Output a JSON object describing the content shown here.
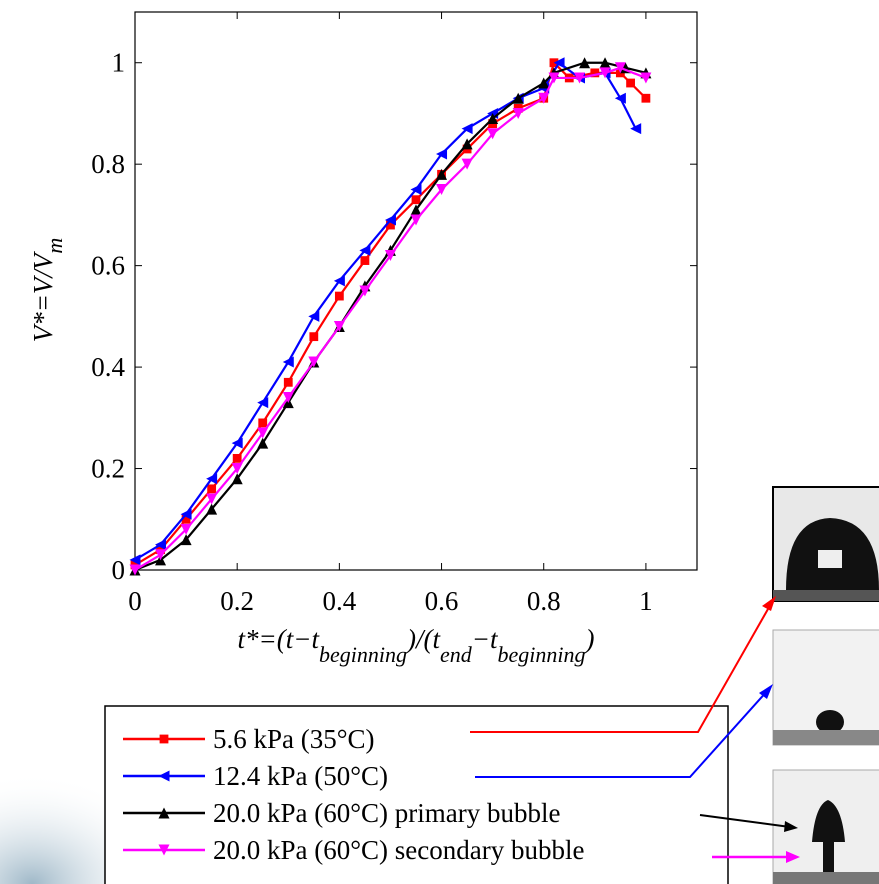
{
  "chart_data": {
    "type": "line",
    "xlabel_parts": [
      "t*=(t−t",
      "beginning",
      ")/(t",
      "end",
      "−t",
      "beginning",
      ")"
    ],
    "ylabel_parts": [
      "V*=V/V",
      "m"
    ],
    "xlim": [
      0,
      1.1
    ],
    "ylim": [
      0,
      1.1
    ],
    "xticks": [
      0,
      0.2,
      0.4,
      0.6,
      0.8,
      1
    ],
    "yticks": [
      0,
      0.2,
      0.4,
      0.6,
      0.8,
      1
    ],
    "series": [
      {
        "name": "5.6 kPa (35°C)",
        "color": "#ff0000",
        "marker": "square",
        "x": [
          0,
          0.05,
          0.1,
          0.15,
          0.2,
          0.25,
          0.3,
          0.35,
          0.4,
          0.45,
          0.5,
          0.55,
          0.6,
          0.65,
          0.7,
          0.75,
          0.8,
          0.82,
          0.85,
          0.9,
          0.95,
          0.97,
          1.0
        ],
        "values": [
          0.01,
          0.04,
          0.1,
          0.16,
          0.22,
          0.29,
          0.37,
          0.46,
          0.54,
          0.61,
          0.68,
          0.73,
          0.78,
          0.83,
          0.88,
          0.91,
          0.93,
          1.0,
          0.97,
          0.98,
          0.98,
          0.96,
          0.93
        ]
      },
      {
        "name": "12.4 kPa (50°C)",
        "color": "#0000ff",
        "marker": "left-triangle",
        "x": [
          0,
          0.05,
          0.1,
          0.15,
          0.2,
          0.25,
          0.3,
          0.35,
          0.4,
          0.45,
          0.5,
          0.55,
          0.6,
          0.65,
          0.7,
          0.75,
          0.8,
          0.83,
          0.87,
          0.92,
          0.95,
          0.98
        ],
        "values": [
          0.02,
          0.05,
          0.11,
          0.18,
          0.25,
          0.33,
          0.41,
          0.5,
          0.57,
          0.63,
          0.69,
          0.75,
          0.82,
          0.87,
          0.9,
          0.93,
          0.95,
          1.0,
          0.97,
          0.98,
          0.93,
          0.87
        ]
      },
      {
        "name": "20.0 kPa (60°C) primary bubble",
        "color": "#000000",
        "marker": "up-triangle",
        "x": [
          0,
          0.05,
          0.1,
          0.15,
          0.2,
          0.25,
          0.3,
          0.35,
          0.4,
          0.45,
          0.5,
          0.55,
          0.6,
          0.65,
          0.7,
          0.75,
          0.8,
          0.82,
          0.88,
          0.92,
          0.96,
          1.0
        ],
        "values": [
          0,
          0.02,
          0.06,
          0.12,
          0.18,
          0.25,
          0.33,
          0.41,
          0.48,
          0.56,
          0.63,
          0.71,
          0.78,
          0.84,
          0.89,
          0.93,
          0.96,
          0.98,
          1.0,
          1.0,
          0.99,
          0.98
        ]
      },
      {
        "name": "20.0 kPa (60°C) secondary bubble",
        "color": "#ff00ff",
        "marker": "down-triangle",
        "x": [
          0,
          0.05,
          0.1,
          0.15,
          0.2,
          0.25,
          0.3,
          0.35,
          0.4,
          0.45,
          0.5,
          0.55,
          0.6,
          0.65,
          0.7,
          0.75,
          0.8,
          0.82,
          0.87,
          0.92,
          0.95,
          1.0
        ],
        "values": [
          0,
          0.03,
          0.08,
          0.14,
          0.2,
          0.27,
          0.34,
          0.41,
          0.48,
          0.55,
          0.62,
          0.69,
          0.75,
          0.8,
          0.86,
          0.9,
          0.93,
          0.97,
          0.97,
          0.98,
          0.99,
          0.97
        ]
      }
    ]
  }
}
